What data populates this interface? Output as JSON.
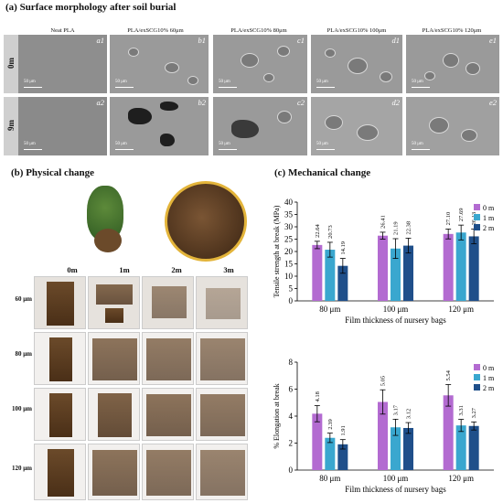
{
  "panel_a": {
    "title": "(a) Surface morphology after soil burial",
    "columns": [
      "Neat PLA",
      "PLA/exSCG10% 60μm",
      "PLA/exSCG10% 80μm",
      "PLA/exSCG10% 100μm",
      "PLA/exSCG10% 120μm"
    ],
    "rows": [
      "0m",
      "9m"
    ],
    "tags_row1": [
      "a1",
      "b1",
      "c1",
      "d1",
      "e1"
    ],
    "tags_row2": [
      "a2",
      "b2",
      "c2",
      "d2",
      "e2"
    ],
    "scale": "50 μm"
  },
  "panel_b": {
    "title": "(b) Physical change",
    "columns": [
      "0m",
      "1m",
      "2m",
      "3m"
    ],
    "rows": [
      "60 μm",
      "80 μm",
      "100 μm",
      "120 μm"
    ]
  },
  "panel_c": {
    "title": "(c) Mechanical change"
  },
  "chart_data": [
    {
      "type": "bar",
      "categories": [
        "80 μm",
        "100 μm",
        "120 μm"
      ],
      "series": [
        {
          "name": "0 m",
          "color": "#b36bd1",
          "values": [
            22.64,
            26.41,
            27.1
          ],
          "errors": [
            1.5,
            1.4,
            2.0
          ]
        },
        {
          "name": "1 m",
          "color": "#3aa7cf",
          "values": [
            20.73,
            21.19,
            27.69
          ],
          "errors": [
            3.0,
            4.0,
            3.0
          ]
        },
        {
          "name": "2 m",
          "color": "#1f4f8a",
          "values": [
            14.19,
            22.38,
            26.13
          ],
          "errors": [
            3.0,
            3.0,
            3.0
          ]
        }
      ],
      "xlabel": "Film thickness of nursery bags",
      "ylabel": "Tensile strength at break (MPa)",
      "ylim": [
        0,
        40
      ],
      "yticks": [
        0,
        5,
        10,
        15,
        20,
        25,
        30,
        35,
        40
      ],
      "value_labels": [
        [
          "22.64",
          "26.41",
          "27.10"
        ],
        [
          "20.73",
          "21.19",
          "27.69"
        ],
        [
          "14.19",
          "22.38",
          "26.13"
        ]
      ],
      "legend": "top-right"
    },
    {
      "type": "bar",
      "categories": [
        "80 μm",
        "100 μm",
        "120 μm"
      ],
      "series": [
        {
          "name": "0 m",
          "color": "#b36bd1",
          "values": [
            4.18,
            5.05,
            5.54
          ],
          "errors": [
            0.6,
            0.9,
            0.8
          ]
        },
        {
          "name": "1 m",
          "color": "#3aa7cf",
          "values": [
            2.39,
            3.17,
            3.31
          ],
          "errors": [
            0.35,
            0.6,
            0.45
          ]
        },
        {
          "name": "2 m",
          "color": "#1f4f8a",
          "values": [
            1.91,
            3.12,
            3.27
          ],
          "errors": [
            0.35,
            0.4,
            0.3
          ]
        }
      ],
      "xlabel": "Film thickness of nursery bags",
      "ylabel": "% Elongation at break",
      "ylim": [
        0,
        8
      ],
      "yticks": [
        0,
        2,
        4,
        6,
        8
      ],
      "value_labels": [
        [
          "4.18",
          "5.05",
          "5.54"
        ],
        [
          "2.39",
          "3.17",
          "3.31"
        ],
        [
          "1.91",
          "3.12",
          "3.27"
        ]
      ],
      "legend": "top-right"
    }
  ]
}
